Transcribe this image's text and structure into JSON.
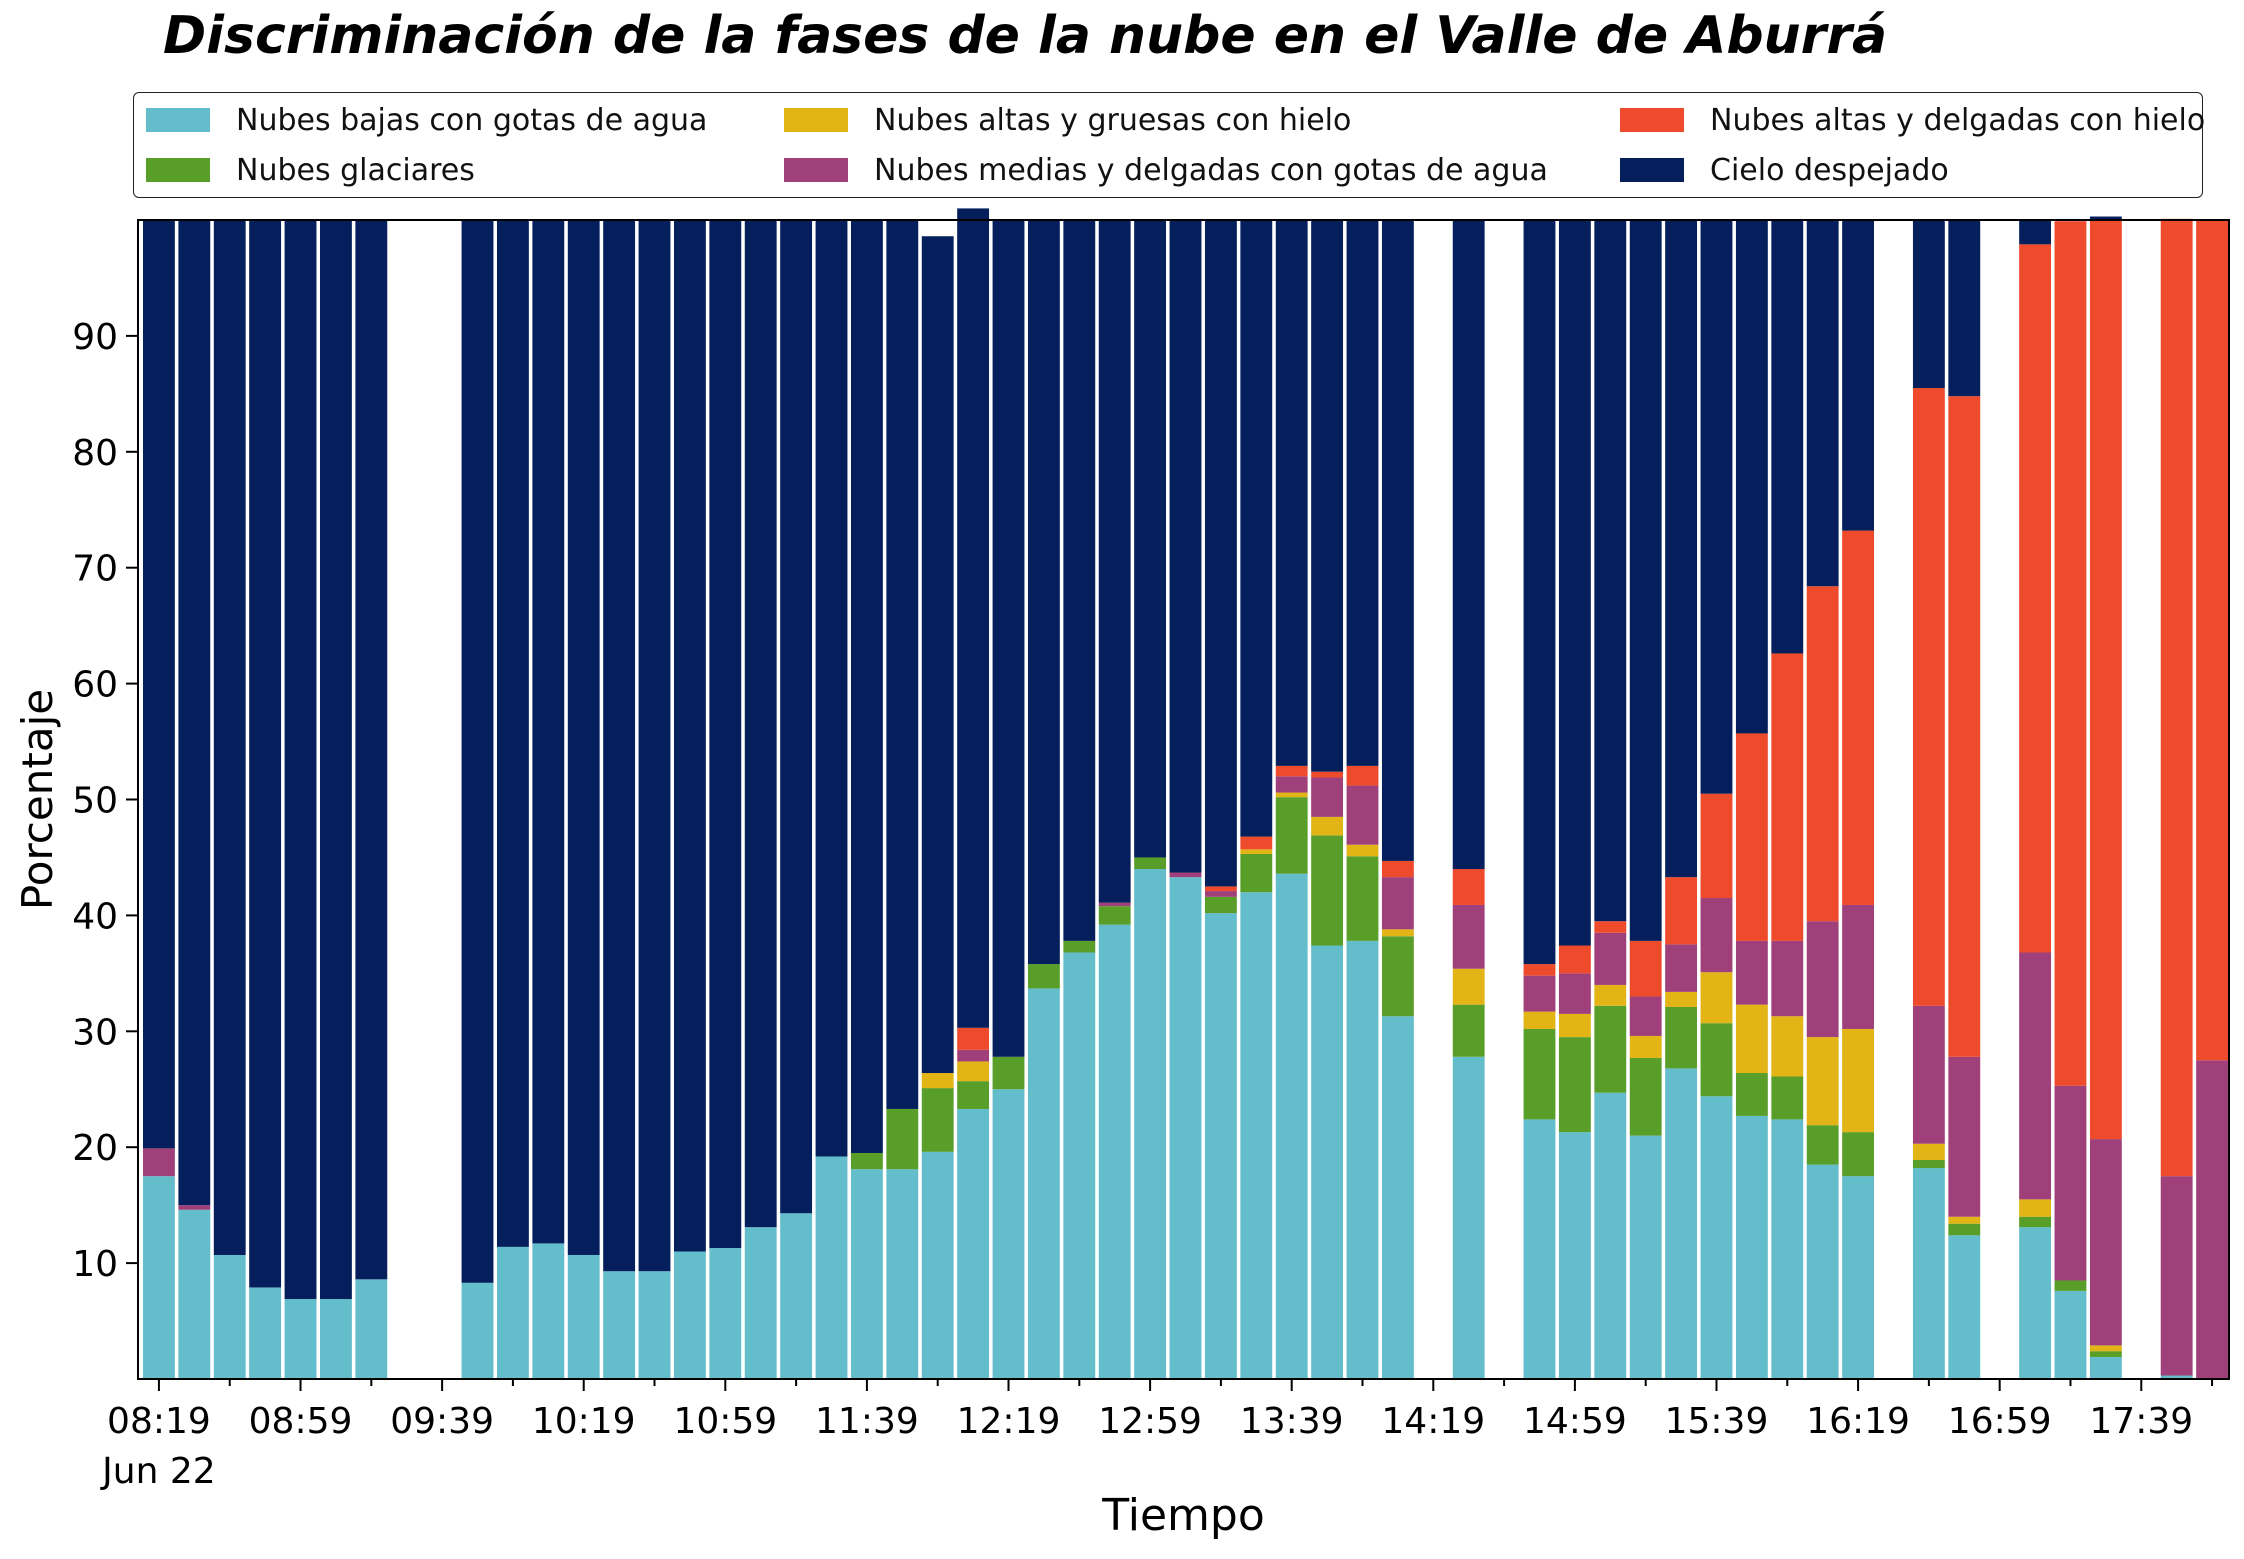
{
  "chart_data": {
    "type": "bar",
    "stacked": true,
    "title": "Discriminación de la fases de la nube en el Valle de Aburrá",
    "xlabel": "Tiempo",
    "ylabel": "Porcentaje",
    "ylim": [
      0,
      100
    ],
    "yticks": [
      10,
      20,
      30,
      40,
      50,
      60,
      70,
      80,
      90
    ],
    "xticks": [
      {
        "index": 0,
        "label": "08:19",
        "sublabel": "Jun 22"
      },
      {
        "index": 4,
        "label": "08:59",
        "sublabel": ""
      },
      {
        "index": 8,
        "label": "09:39",
        "sublabel": ""
      },
      {
        "index": 12,
        "label": "10:19",
        "sublabel": ""
      },
      {
        "index": 16,
        "label": "10:59",
        "sublabel": ""
      },
      {
        "index": 20,
        "label": "11:39",
        "sublabel": ""
      },
      {
        "index": 24,
        "label": "12:19",
        "sublabel": ""
      },
      {
        "index": 28,
        "label": "12:59",
        "sublabel": ""
      },
      {
        "index": 32,
        "label": "13:39",
        "sublabel": ""
      },
      {
        "index": 36,
        "label": "14:19",
        "sublabel": ""
      },
      {
        "index": 40,
        "label": "14:59",
        "sublabel": ""
      },
      {
        "index": 44,
        "label": "15:39",
        "sublabel": ""
      },
      {
        "index": 48,
        "label": "16:19",
        "sublabel": ""
      },
      {
        "index": 52,
        "label": "16:59",
        "sublabel": ""
      },
      {
        "index": 56,
        "label": "17:39",
        "sublabel": ""
      }
    ],
    "grid": false,
    "legend_position": "top",
    "n_slots": 59,
    "series": [
      {
        "name": "Nubes bajas con gotas de agua",
        "color": "#63bdca",
        "values": [
          17.5,
          14.6,
          10.7,
          7.9,
          6.9,
          6.9,
          8.6,
          null,
          null,
          8.3,
          11.4,
          11.7,
          10.7,
          9.3,
          9.3,
          11.0,
          11.3,
          13.1,
          14.3,
          19.2,
          18.1,
          18.1,
          19.6,
          23.3,
          25.0,
          33.7,
          36.8,
          39.2,
          44.0,
          43.3,
          40.2,
          42.0,
          43.6,
          37.4,
          37.8,
          31.3,
          null,
          27.8,
          null,
          22.4,
          21.3,
          24.7,
          21.0,
          26.8,
          24.4,
          22.7,
          22.4,
          18.5,
          17.5,
          null,
          18.2,
          12.4,
          null,
          13.1,
          7.6,
          1.9,
          null,
          0.3,
          0
        ]
      },
      {
        "name": "Nubes glaciares",
        "color": "#5a9e2a",
        "values": [
          0,
          0,
          0,
          0,
          0,
          0,
          0,
          null,
          null,
          0,
          0,
          0,
          0,
          0,
          0,
          0,
          0,
          0,
          0,
          0,
          1.4,
          5.2,
          5.5,
          2.4,
          2.8,
          2.1,
          1.0,
          1.6,
          1.0,
          0,
          1.4,
          3.3,
          6.6,
          9.5,
          7.3,
          6.9,
          null,
          4.5,
          null,
          7.8,
          8.2,
          7.5,
          6.7,
          5.3,
          6.3,
          3.7,
          3.7,
          3.4,
          3.8,
          null,
          0.7,
          1.0,
          null,
          0.9,
          0.9,
          0.5,
          null,
          0,
          0
        ]
      },
      {
        "name": "Nubes altas y gruesas con hielo",
        "color": "#e2b416",
        "values": [
          0,
          0,
          0,
          0,
          0,
          0,
          0,
          null,
          null,
          0,
          0,
          0,
          0,
          0,
          0,
          0,
          0,
          0,
          0,
          0,
          0,
          0,
          1.3,
          1.7,
          0,
          0,
          0,
          0,
          0,
          0,
          0,
          0.4,
          0.4,
          1.6,
          1.0,
          0.6,
          null,
          3.1,
          null,
          1.5,
          2.0,
          1.8,
          1.9,
          1.3,
          4.4,
          5.9,
          5.2,
          7.6,
          8.9,
          null,
          1.4,
          0.6,
          null,
          1.5,
          0,
          0.5,
          null,
          0,
          0
        ]
      },
      {
        "name": "Nubes medias y delgadas con gotas de agua",
        "color": "#a0407a",
        "values": [
          2.4,
          0.4,
          0,
          0,
          0,
          0,
          0,
          null,
          null,
          0,
          0,
          0,
          0,
          0,
          0,
          0,
          0,
          0,
          0,
          0,
          0,
          0,
          0,
          1.0,
          0,
          0,
          0,
          0.3,
          0,
          0.4,
          0.5,
          0,
          1.4,
          3.4,
          5.1,
          4.5,
          null,
          5.5,
          null,
          3.1,
          3.5,
          4.5,
          3.4,
          4.1,
          6.4,
          5.5,
          6.5,
          10.0,
          10.7,
          null,
          11.9,
          13.8,
          null,
          21.3,
          16.8,
          17.8,
          null,
          17.2,
          27.5
        ]
      },
      {
        "name": "Nubes altas y delgadas con hielo",
        "color": "#ee4a2c",
        "values": [
          0,
          0,
          0,
          0,
          0,
          0,
          0,
          null,
          null,
          0,
          0,
          0,
          0,
          0,
          0,
          0,
          0,
          0,
          0,
          0,
          0,
          0,
          0,
          1.9,
          0,
          0,
          0,
          0,
          0,
          0,
          0.4,
          1.1,
          0.9,
          0.5,
          1.7,
          1.4,
          null,
          3.1,
          null,
          1.0,
          2.4,
          1.0,
          4.8,
          5.8,
          9.0,
          17.9,
          24.8,
          28.9,
          32.3,
          null,
          53.3,
          57.0,
          null,
          61.1,
          74.6,
          79.3,
          null,
          82.6,
          72.5
        ]
      },
      {
        "name": "Cielo despejado",
        "color": "#041f5c",
        "values": [
          80.1,
          85.0,
          89.3,
          92.1,
          93.1,
          93.1,
          91.4,
          null,
          null,
          91.7,
          88.6,
          88.3,
          89.3,
          90.7,
          90.7,
          89.0,
          88.7,
          86.9,
          85.7,
          80.8,
          80.5,
          76.7,
          72.2,
          70.7,
          72.2,
          64.2,
          62.2,
          58.9,
          55.0,
          56.3,
          57.5,
          53.2,
          47.1,
          47.6,
          47.1,
          55.3,
          null,
          56.0,
          null,
          64.2,
          62.6,
          60.5,
          62.2,
          56.7,
          49.5,
          44.3,
          37.4,
          31.6,
          26.8,
          null,
          14.5,
          15.2,
          null,
          2.1,
          0,
          0.3,
          null,
          0,
          0
        ]
      }
    ]
  }
}
